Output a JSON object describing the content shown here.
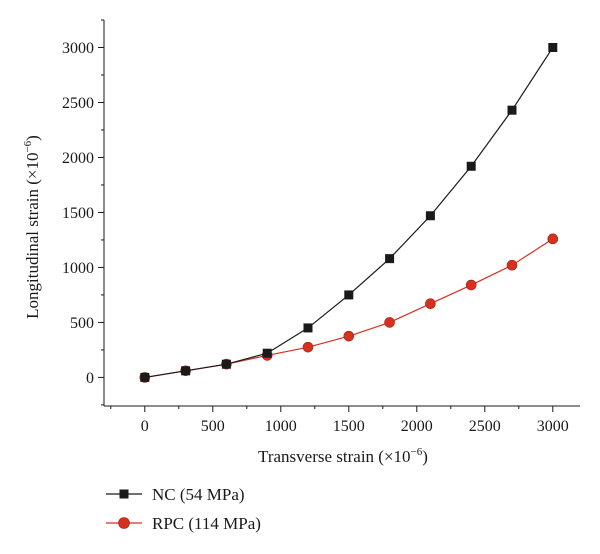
{
  "chart_data": {
    "type": "line",
    "xlabel": "Transverse strain (×10",
    "xlabel_exp": "−6",
    "xlabel_close": ")",
    "ylabel": "Longitudinal strain (×10",
    "ylabel_exp": "−6",
    "ylabel_close": ")",
    "xlim": [
      -300,
      3200
    ],
    "ylim": [
      -260,
      3250
    ],
    "xticks": [
      0,
      500,
      1000,
      1500,
      2000,
      2500,
      3000
    ],
    "yticks": [
      0,
      500,
      1000,
      1500,
      2000,
      2500,
      3000
    ],
    "grid": false,
    "legend_position": "bottom-left",
    "series": [
      {
        "name": "NC (54 MPa)",
        "color": "#1a1a1a",
        "marker": "square",
        "points": [
          [
            0,
            0
          ],
          [
            300,
            60
          ],
          [
            600,
            120
          ],
          [
            900,
            220
          ],
          [
            1200,
            450
          ],
          [
            1500,
            750
          ],
          [
            1800,
            1080
          ],
          [
            2100,
            1470
          ],
          [
            2400,
            1920
          ],
          [
            2700,
            2430
          ],
          [
            3000,
            3000
          ]
        ]
      },
      {
        "name": "RPC (114 MPa)",
        "color": "#d7301f",
        "marker": "circle",
        "points": [
          [
            0,
            0
          ],
          [
            300,
            60
          ],
          [
            600,
            120
          ],
          [
            900,
            200
          ],
          [
            1200,
            275
          ],
          [
            1500,
            375
          ],
          [
            1800,
            500
          ],
          [
            2100,
            670
          ],
          [
            2400,
            840
          ],
          [
            2700,
            1020
          ],
          [
            3000,
            1260
          ]
        ]
      }
    ]
  }
}
